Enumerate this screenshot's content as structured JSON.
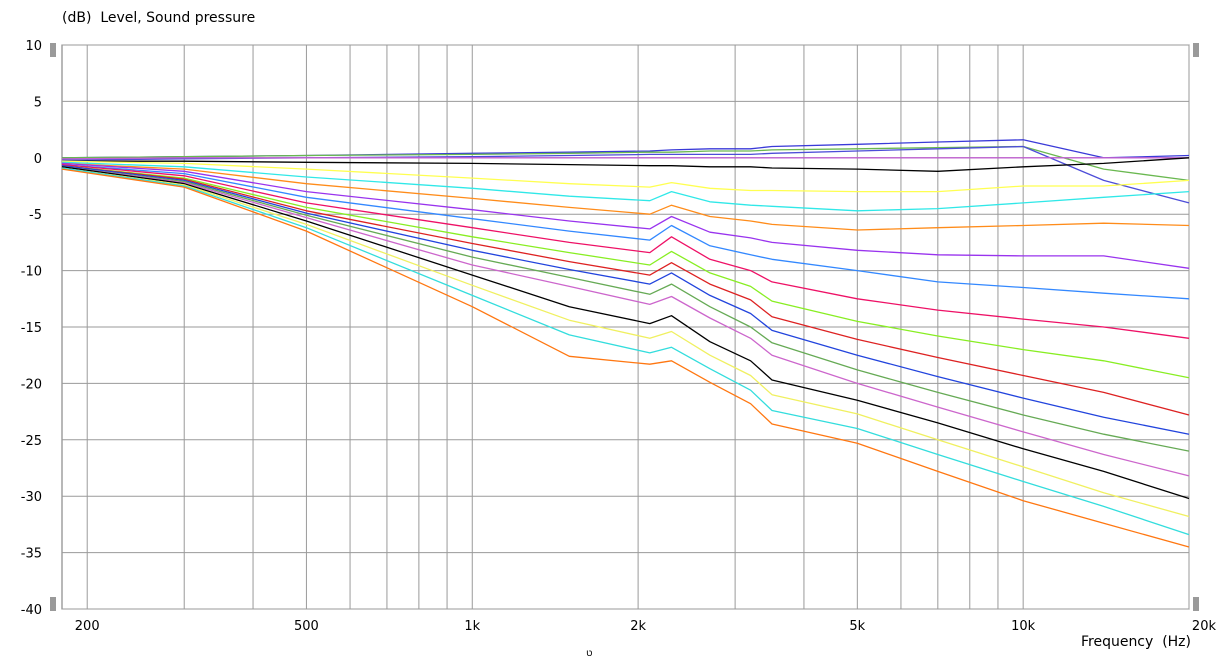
{
  "chart_data": {
    "type": "line",
    "title": "(dB)  Level, Sound pressure",
    "xlabel": "Frequency  (Hz)",
    "ylabel": "",
    "x_scale": "log",
    "xlim": [
      180,
      20000
    ],
    "ylim": [
      -40,
      10
    ],
    "grid": true,
    "y_ticks": [
      10,
      5,
      0,
      -5,
      -10,
      -15,
      -20,
      -25,
      -30,
      -35,
      -40
    ],
    "y_tick_labels": [
      "10",
      "5",
      "0",
      "-5",
      "-10",
      "-15",
      "-20",
      "-25",
      "-30",
      "-35",
      "-40"
    ],
    "x_ticks": [
      200,
      500,
      1000,
      2000,
      5000,
      10000,
      20000
    ],
    "x_tick_labels": [
      "200",
      "500",
      "1k",
      "2k",
      "5k",
      "10k",
      "20k"
    ],
    "x_grid": [
      200,
      300,
      400,
      500,
      600,
      700,
      800,
      900,
      1000,
      2000,
      3000,
      4000,
      5000,
      6000,
      7000,
      8000,
      9000,
      10000,
      20000
    ],
    "x": [
      180,
      300,
      500,
      1000,
      1500,
      2100,
      2300,
      2700,
      3200,
      3500,
      5000,
      7000,
      10000,
      14000,
      20000
    ],
    "series": [
      {
        "color": "#3a3ad8",
        "values": [
          0.0,
          0.1,
          0.2,
          0.4,
          0.5,
          0.6,
          0.7,
          0.8,
          0.8,
          1.0,
          1.2,
          1.4,
          1.6,
          0.0,
          0.2
        ]
      },
      {
        "color": "#6ab850",
        "values": [
          0.0,
          0.1,
          0.2,
          0.3,
          0.4,
          0.5,
          0.5,
          0.6,
          0.6,
          0.7,
          0.8,
          0.9,
          1.0,
          -1.0,
          -2.0
        ]
      },
      {
        "color": "#4d4dd8",
        "values": [
          -0.2,
          -0.1,
          0.0,
          0.1,
          0.2,
          0.3,
          0.3,
          0.3,
          0.3,
          0.4,
          0.6,
          0.8,
          1.0,
          -2.0,
          -4.0
        ]
      },
      {
        "color": "#c060d0",
        "values": [
          -0.1,
          0.0,
          0.0,
          0.0,
          0.0,
          0.0,
          0.0,
          0.0,
          0.0,
          0.0,
          0.0,
          0.0,
          0.0,
          0.0,
          0.0
        ]
      },
      {
        "color": "#000000",
        "values": [
          -0.3,
          -0.3,
          -0.4,
          -0.5,
          -0.6,
          -0.7,
          -0.7,
          -0.8,
          -0.8,
          -0.9,
          -1.0,
          -1.2,
          -0.8,
          -0.5,
          0.0
        ]
      },
      {
        "color": "#ffff50",
        "values": [
          -0.3,
          -0.5,
          -1.0,
          -1.8,
          -2.3,
          -2.6,
          -2.2,
          -2.7,
          -2.9,
          -2.9,
          -3.0,
          -3.0,
          -2.5,
          -2.5,
          -2.0
        ]
      },
      {
        "color": "#30e8e8",
        "values": [
          -0.4,
          -0.8,
          -1.7,
          -2.7,
          -3.4,
          -3.8,
          -3.0,
          -3.9,
          -4.2,
          -4.3,
          -4.7,
          -4.5,
          -4.0,
          -3.5,
          -3.0
        ]
      },
      {
        "color": "#ff8c1a",
        "values": [
          -0.5,
          -1.0,
          -2.3,
          -3.6,
          -4.4,
          -5.0,
          -4.2,
          -5.2,
          -5.6,
          -5.9,
          -6.4,
          -6.2,
          -6.0,
          -5.8,
          -6.0
        ]
      },
      {
        "color": "#9933ee",
        "values": [
          -0.5,
          -1.2,
          -3.0,
          -4.6,
          -5.6,
          -6.3,
          -5.2,
          -6.6,
          -7.1,
          -7.5,
          -8.2,
          -8.6,
          -8.7,
          -8.7,
          -9.8
        ]
      },
      {
        "color": "#3388ff",
        "values": [
          -0.6,
          -1.4,
          -3.5,
          -5.4,
          -6.5,
          -7.3,
          -6.0,
          -7.8,
          -8.6,
          -9.0,
          -10.0,
          -11.0,
          -11.5,
          -12.0,
          -12.5
        ]
      },
      {
        "color": "#ee1166",
        "values": [
          -0.6,
          -1.6,
          -4.0,
          -6.2,
          -7.5,
          -8.4,
          -7.0,
          -9.0,
          -10.0,
          -11.0,
          -12.5,
          -13.5,
          -14.3,
          -15.0,
          -16.0
        ]
      },
      {
        "color": "#88ee22",
        "values": [
          -0.7,
          -1.8,
          -4.4,
          -7.0,
          -8.4,
          -9.5,
          -8.3,
          -10.2,
          -11.4,
          -12.7,
          -14.5,
          -15.8,
          -17.0,
          -18.0,
          -19.5
        ]
      },
      {
        "color": "#dd2222",
        "values": [
          -0.7,
          -1.9,
          -4.7,
          -7.6,
          -9.2,
          -10.4,
          -9.3,
          -11.2,
          -12.6,
          -14.1,
          -16.1,
          -17.7,
          -19.3,
          -20.8,
          -22.8
        ]
      },
      {
        "color": "#2244dd",
        "values": [
          -0.7,
          -2.0,
          -4.9,
          -8.2,
          -9.9,
          -11.2,
          -10.2,
          -12.2,
          -13.8,
          -15.3,
          -17.5,
          -19.4,
          -21.3,
          -23.0,
          -24.5
        ]
      },
      {
        "color": "#66aa55",
        "values": [
          -0.8,
          -2.1,
          -5.1,
          -8.8,
          -10.6,
          -12.1,
          -11.2,
          -13.2,
          -15.0,
          -16.4,
          -18.8,
          -20.8,
          -22.8,
          -24.5,
          -26.0
        ]
      },
      {
        "color": "#cc66cc",
        "values": [
          -0.8,
          -2.2,
          -5.3,
          -9.5,
          -11.4,
          -13.0,
          -12.3,
          -14.2,
          -16.0,
          -17.5,
          -20.0,
          -22.1,
          -24.3,
          -26.3,
          -28.2
        ]
      },
      {
        "color": "#000000",
        "values": [
          -0.8,
          -2.3,
          -5.6,
          -10.4,
          -13.2,
          -14.7,
          -14.0,
          -16.3,
          -18.0,
          -19.7,
          -21.5,
          -23.5,
          -25.8,
          -27.8,
          -30.2
        ]
      },
      {
        "color": "#f0f060",
        "values": [
          -0.9,
          -2.4,
          -5.9,
          -11.3,
          -14.4,
          -16.0,
          -15.4,
          -17.5,
          -19.3,
          -21.0,
          -22.7,
          -25.0,
          -27.4,
          -29.7,
          -31.8
        ]
      },
      {
        "color": "#33dddd",
        "values": [
          -0.9,
          -2.5,
          -6.2,
          -12.2,
          -15.7,
          -17.3,
          -16.8,
          -18.7,
          -20.6,
          -22.4,
          -24.0,
          -26.3,
          -28.7,
          -30.9,
          -33.4
        ]
      },
      {
        "color": "#ff7711",
        "values": [
          -1.0,
          -2.6,
          -6.5,
          -13.2,
          -17.6,
          -18.3,
          -18.0,
          -19.9,
          -21.8,
          -23.6,
          -25.3,
          -27.8,
          -30.4,
          -32.4,
          -34.5
        ]
      }
    ]
  },
  "stray_mark": "ט"
}
